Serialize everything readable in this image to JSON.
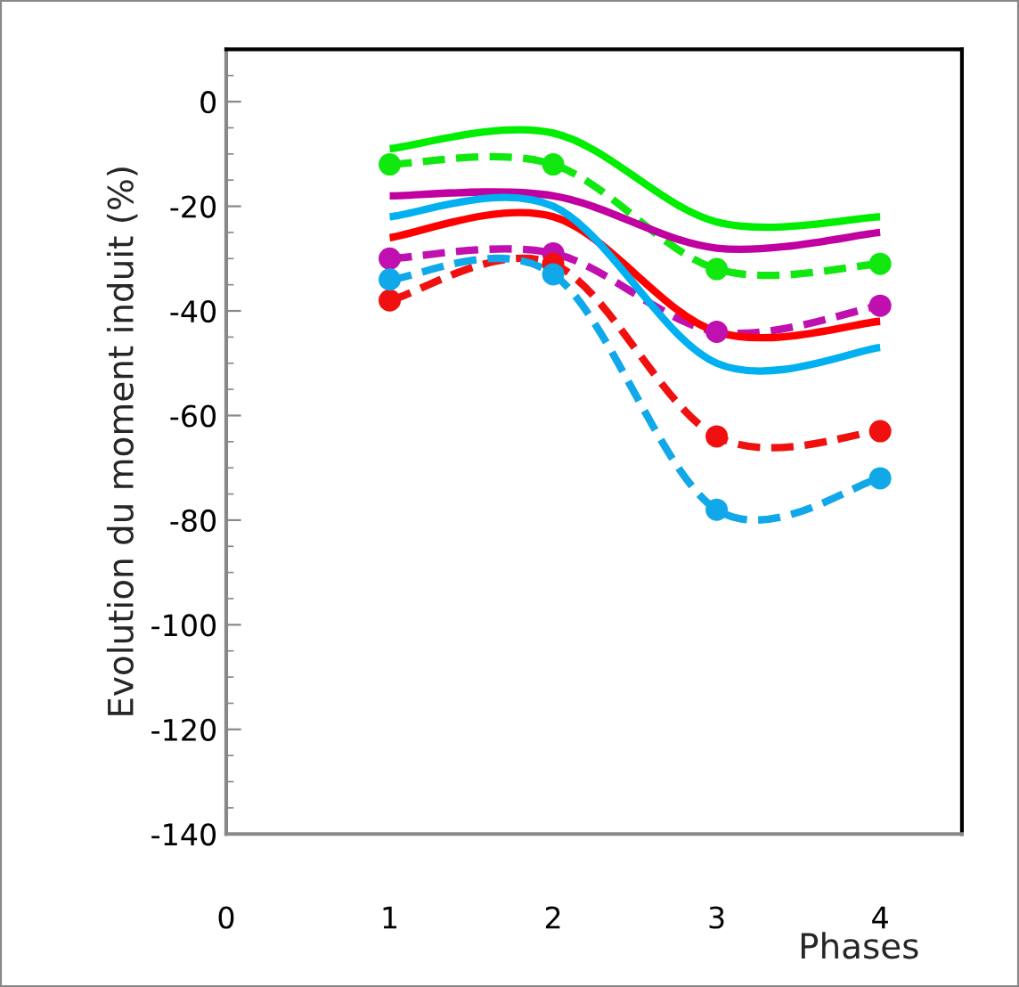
{
  "chart_data": {
    "type": "line",
    "xlabel": "Phases",
    "ylabel": "Evolution du moment induit (%)",
    "x": [
      1,
      2,
      3,
      4
    ],
    "xlim": [
      0,
      4.5
    ],
    "xticks": [
      0,
      1,
      2,
      3,
      4
    ],
    "ylim": [
      -140,
      10
    ],
    "yticks": [
      -140,
      -120,
      -100,
      -80,
      -60,
      -40,
      -20,
      0
    ],
    "grid": false,
    "legend": false,
    "series": [
      {
        "color": "#00ee00",
        "values": [
          -9,
          -6,
          -23,
          -22
        ],
        "line_style": "solid",
        "marker": "none"
      },
      {
        "color": "#10e810",
        "values": [
          -12,
          -12,
          -32,
          -31
        ],
        "line_style": "dashed",
        "marker": "circle"
      },
      {
        "color": "#c000a0",
        "values": [
          -18,
          -18,
          -28,
          -25
        ],
        "line_style": "solid",
        "marker": "none"
      },
      {
        "color": "#c010b0",
        "values": [
          -30,
          -29,
          -44,
          -39
        ],
        "line_style": "dashed",
        "marker": "circle"
      },
      {
        "color": "#ff0000",
        "values": [
          -26,
          -22,
          -44,
          -42
        ],
        "line_style": "solid",
        "marker": "none"
      },
      {
        "color": "#f01010",
        "values": [
          -38,
          -31,
          -64,
          -63
        ],
        "line_style": "dashed",
        "marker": "circle"
      },
      {
        "color": "#00b0f0",
        "values": [
          -22,
          -20,
          -50,
          -47
        ],
        "line_style": "solid",
        "marker": "none"
      },
      {
        "color": "#10a8e8",
        "values": [
          -34,
          -33,
          -78,
          -72
        ],
        "line_style": "dashed",
        "marker": "circle"
      }
    ]
  }
}
